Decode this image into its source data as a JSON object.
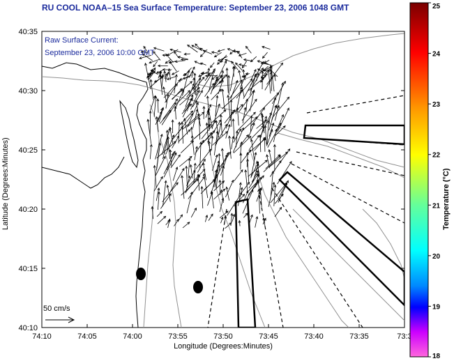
{
  "title": "RU COOL  NOAA–15  Sea Surface Temperature:  September 23, 2006 1048 GMT",
  "current_label_line1": "Raw Surface Current:",
  "current_label_line2": "September 23, 2006 10:00 GMT",
  "scale_label": "50 cm/s",
  "x_axis_label": "Longitude (Degrees:Minutes)",
  "y_axis_label": "Latitude (Degrees:Minutes)",
  "colorbar_label": "Temperature (°C)",
  "x_ticks": [
    "74:10",
    "74:05",
    "74:00",
    "73:55",
    "73:50",
    "73:45",
    "73:40",
    "73:35",
    "73:3"
  ],
  "y_ticks": [
    "40:35",
    "40:30",
    "40:25",
    "40:20",
    "40:15",
    "40:10"
  ],
  "colorbar_ticks": [
    "25",
    "24",
    "23",
    "22",
    "21",
    "20",
    "19",
    "18"
  ],
  "colorbar_colors": [
    "#8b0000",
    "#ff0000",
    "#ff8000",
    "#ffff00",
    "#80ff80",
    "#00ffff",
    "#0080ff",
    "#0000ff",
    "#ff00ff",
    "#ff66cc"
  ]
}
